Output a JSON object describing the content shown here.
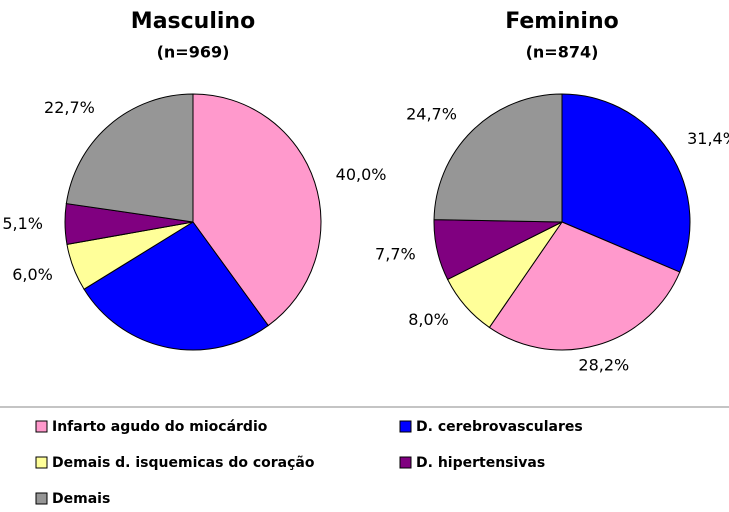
{
  "chart_data": [
    {
      "type": "pie",
      "title": "Masculino",
      "subtitle": "(n=969)",
      "categories": [
        "Infarto agudo do miocárdio",
        "D. cerebrovasculares",
        "Demais d. isquemicas do coração",
        "D. hipertensivas",
        "Demais"
      ],
      "colors": [
        "#ff99cc",
        "#0000ff",
        "#ffff99",
        "#800080",
        "#969696"
      ],
      "values": [
        40.0,
        26.2,
        6.0,
        5.1,
        22.7
      ],
      "value_labels": [
        "40,0%",
        null,
        "6,0%",
        "5,1%",
        "22,7%"
      ]
    },
    {
      "type": "pie",
      "title": "Feminino",
      "subtitle": "(n=874)",
      "categories": [
        "D. cerebrovasculares",
        "Infarto agudo do miocárdio",
        "Demais d. isquemicas do coração",
        "D. hipertensivas",
        "Demais"
      ],
      "colors": [
        "#0000ff",
        "#ff99cc",
        "#ffff99",
        "#800080",
        "#969696"
      ],
      "values": [
        31.4,
        28.2,
        8.0,
        7.7,
        24.7
      ],
      "value_labels": [
        "31,4%",
        "28,2%",
        "8,0%",
        "7,7%",
        "24,7%"
      ]
    }
  ]
}
